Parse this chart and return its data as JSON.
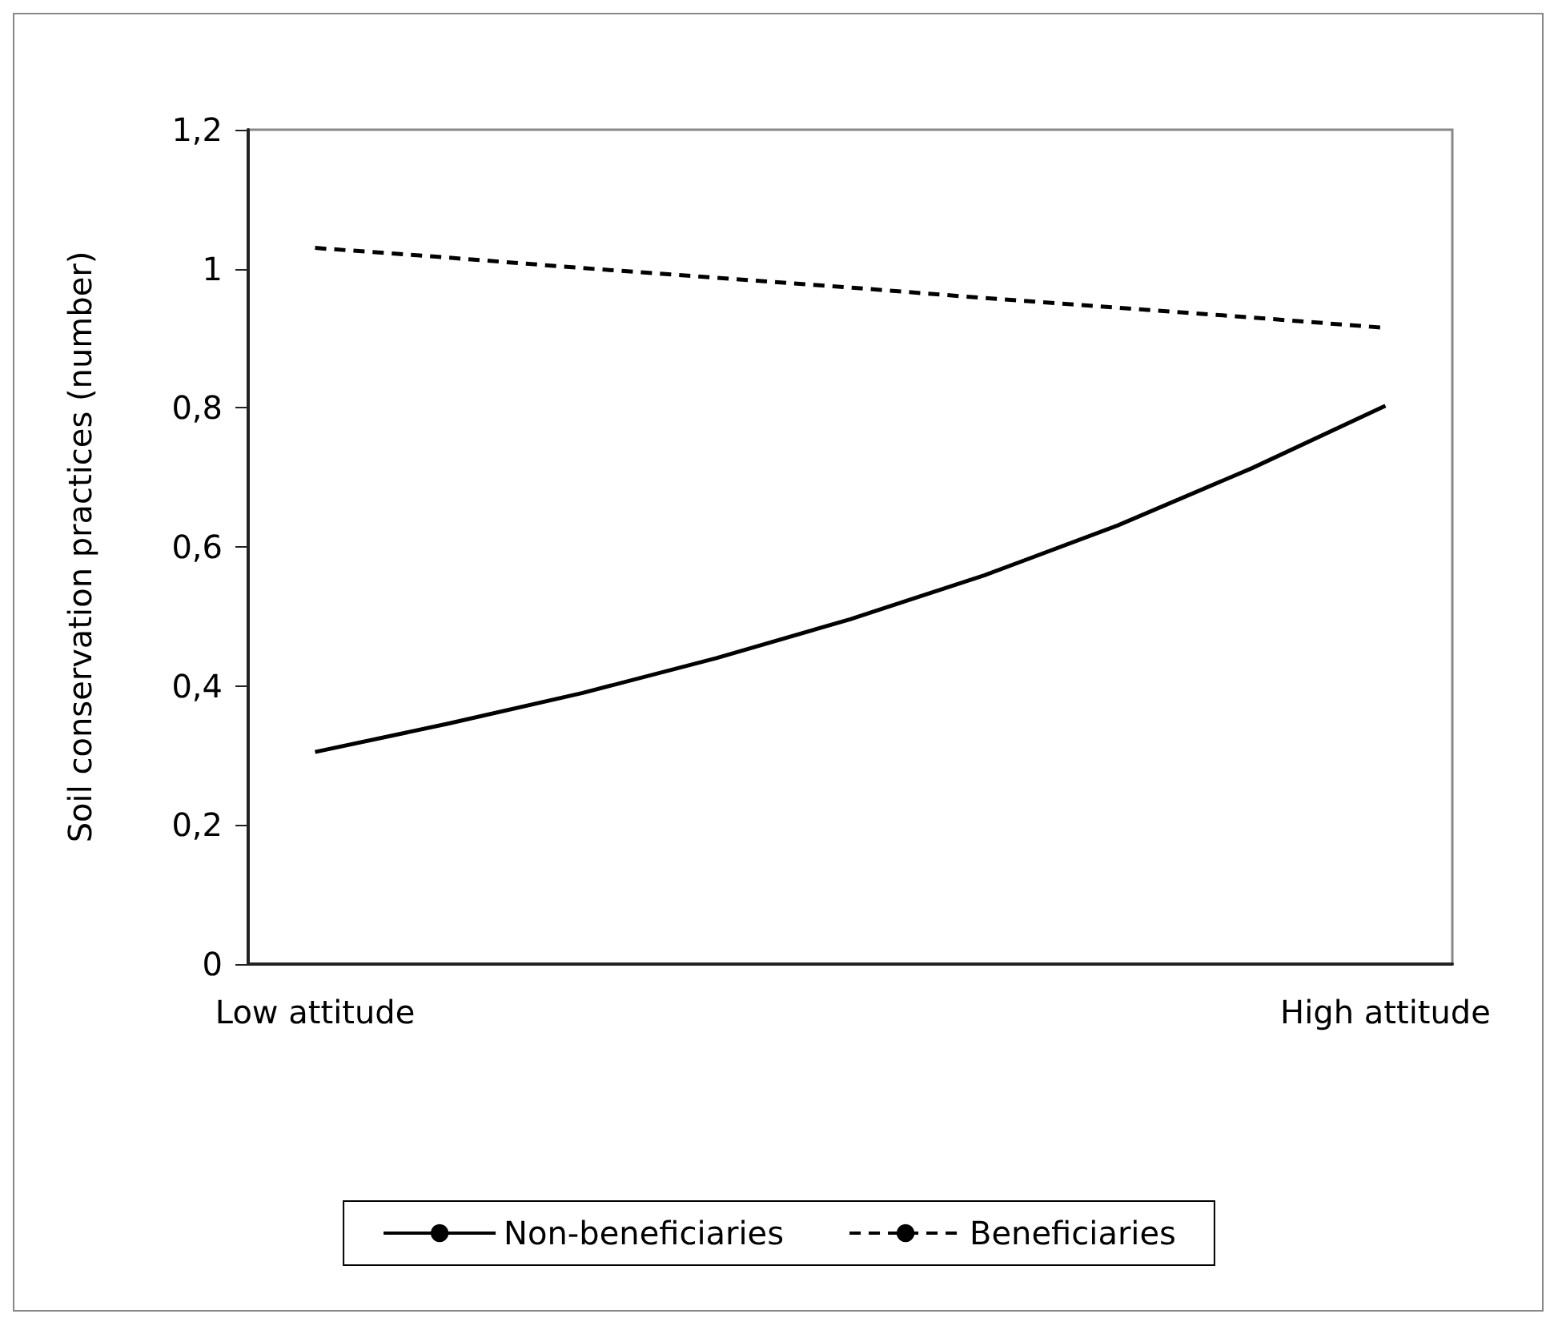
{
  "chart_data": {
    "type": "line",
    "ylabel": "Soil conservation practices (number)",
    "categories": [
      "Low attitude",
      null,
      null,
      null,
      null,
      null,
      null,
      null,
      "High attitude"
    ],
    "series": [
      {
        "name": "Non-beneficiaries",
        "color": "#000000",
        "line_style": "solid",
        "values": [
          0.305,
          0.346,
          0.39,
          0.44,
          0.496,
          0.559,
          0.631,
          0.713,
          0.803
        ]
      },
      {
        "name": "Beneficiaries",
        "color": "#000000",
        "line_style": "dashed",
        "values": [
          1.03,
          1.016,
          1.001,
          0.987,
          0.973,
          0.958,
          0.944,
          0.93,
          0.915
        ]
      }
    ],
    "ylim": [
      0,
      1.2
    ],
    "yticks": [
      0,
      {
        "value": 0.2,
        "label": "0,2"
      },
      {
        "value": 0.4,
        "label": "0,4"
      },
      {
        "value": 0.6,
        "label": "0,6"
      },
      {
        "value": 0.8,
        "label": "0,8"
      },
      1,
      {
        "value": 1.2,
        "label": "1,2"
      }
    ],
    "grid": false,
    "legend": "bottom",
    "marker": "none"
  }
}
